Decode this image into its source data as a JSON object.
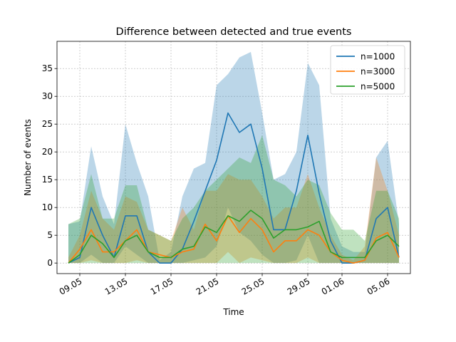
{
  "chart_data": {
    "type": "line",
    "title": "Difference between detected and true events",
    "xlabel": "Time",
    "ylabel": "Number of events",
    "x_ticks": [
      "09.05",
      "13.05",
      "17.05",
      "21.05",
      "25.05",
      "29.05",
      "01.06",
      "05.06"
    ],
    "x_tick_positions": [
      "2020-05-09",
      "2020-05-13",
      "2020-05-17",
      "2020-05-21",
      "2020-05-25",
      "2020-05-29",
      "2020-06-01",
      "2020-06-05"
    ],
    "y_ticks": [
      0,
      5,
      10,
      15,
      20,
      25,
      30,
      35
    ],
    "xlim": [
      "2020-05-07",
      "2020-06-07"
    ],
    "ylim": [
      -1.9,
      39.9
    ],
    "grid": true,
    "legend_position": "upper right",
    "x": [
      "2020-05-08",
      "2020-05-09",
      "2020-05-10",
      "2020-05-11",
      "2020-05-12",
      "2020-05-13",
      "2020-05-14",
      "2020-05-15",
      "2020-05-16",
      "2020-05-17",
      "2020-05-18",
      "2020-05-19",
      "2020-05-20",
      "2020-05-21",
      "2020-05-22",
      "2020-05-23",
      "2020-05-24",
      "2020-05-25",
      "2020-05-26",
      "2020-05-27",
      "2020-05-28",
      "2020-05-29",
      "2020-05-30",
      "2020-05-31",
      "2020-06-01",
      "2020-06-02",
      "2020-06-03",
      "2020-06-04",
      "2020-06-05",
      "2020-06-06"
    ],
    "series": [
      {
        "name": "n=1000",
        "color": "#1f77b4",
        "values": [
          0,
          1,
          10,
          5,
          1,
          8.5,
          8.5,
          2,
          0,
          0,
          2.5,
          7.5,
          13,
          18.5,
          27,
          23.5,
          25,
          17,
          6,
          6,
          13,
          23,
          12.5,
          4,
          0,
          0,
          0.5,
          8,
          10,
          1
        ],
        "band_upper": [
          7,
          7.5,
          21,
          12,
          7,
          25,
          18,
          12,
          0.5,
          2,
          12,
          17,
          18,
          32,
          34,
          37,
          38,
          27,
          15,
          16,
          20,
          36,
          32,
          8,
          3,
          2,
          2,
          19,
          22,
          7
        ],
        "band_lower": [
          0,
          0,
          1.5,
          0,
          0,
          3,
          1.5,
          0,
          0,
          0,
          0,
          0.5,
          1,
          3,
          10,
          5.5,
          4,
          1.5,
          0,
          0,
          0.5,
          5,
          0,
          0,
          0,
          0,
          0,
          0,
          0,
          0
        ]
      },
      {
        "name": "n=3000",
        "color": "#ff7f0e",
        "values": [
          0,
          2.5,
          6,
          2,
          2,
          4,
          6,
          2,
          1.5,
          1,
          2,
          2.5,
          7,
          4,
          8.5,
          5.5,
          8,
          6,
          2,
          4,
          4,
          6,
          5,
          2,
          0.5,
          0,
          0.5,
          4.5,
          5.5,
          1
        ],
        "band_upper": [
          1,
          5,
          13,
          8,
          6,
          12,
          11,
          6,
          5,
          4,
          10,
          6,
          13,
          13,
          16,
          15,
          15,
          12,
          8,
          10,
          10,
          16,
          10,
          5,
          1.5,
          0.5,
          3,
          19,
          13,
          5
        ],
        "band_lower": [
          0,
          0,
          0.5,
          0,
          0,
          0,
          0.5,
          0,
          0,
          0,
          0,
          0,
          0,
          0,
          2,
          0,
          1,
          0.5,
          0,
          0,
          0,
          1,
          0,
          0,
          0,
          0,
          0,
          0,
          0,
          0
        ]
      },
      {
        "name": "n=5000",
        "color": "#2ca02c",
        "values": [
          0,
          1.5,
          5,
          3.5,
          1,
          4,
          5,
          2,
          1,
          1,
          2.5,
          3,
          6.5,
          5.5,
          8.5,
          7.5,
          9.5,
          8,
          4.5,
          6,
          6,
          6.5,
          7.5,
          2,
          1,
          1,
          1,
          4,
          5,
          3
        ],
        "band_upper": [
          7,
          8,
          16,
          8,
          8,
          14,
          14,
          6,
          5,
          4,
          8,
          10,
          13,
          15,
          17,
          19,
          18,
          23,
          15,
          14,
          12,
          15,
          14,
          9,
          6,
          6,
          4,
          13,
          13,
          8
        ],
        "band_lower": [
          0,
          0,
          0,
          0,
          0,
          0,
          0,
          0,
          0,
          0,
          0,
          0,
          0,
          0,
          0,
          0,
          0,
          0,
          0,
          0,
          0,
          0,
          0,
          0,
          0,
          0,
          0,
          0,
          0,
          0
        ]
      }
    ]
  }
}
